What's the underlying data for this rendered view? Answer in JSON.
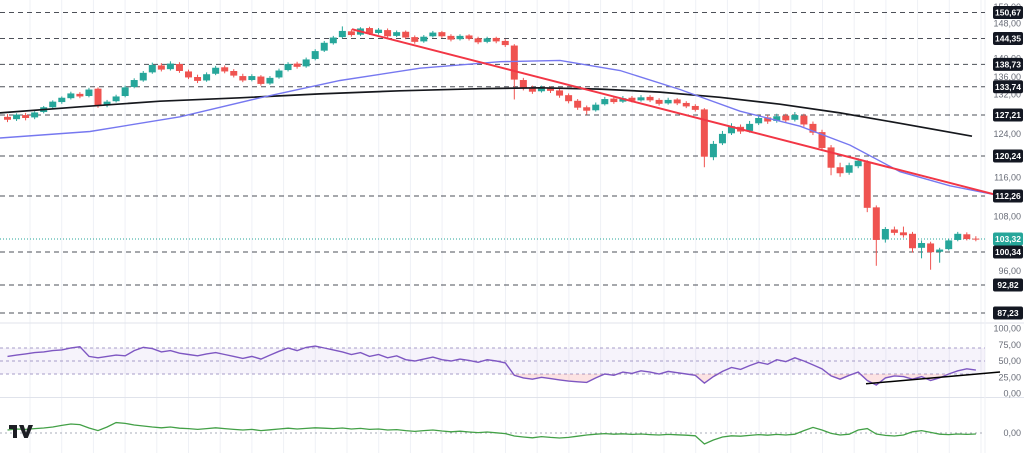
{
  "logo": {
    "name": "TradingView"
  },
  "chart_data": {
    "type": "candlestick",
    "legend_position": "none",
    "grid": "vertical-light",
    "decimal_separator": ",",
    "colors": {
      "background": "#ffffff",
      "grid": "#eff1f6",
      "separator": "#e0e3eb",
      "up": "#26a69a",
      "down": "#ef5350",
      "ma_black": "#16181d",
      "ma_blue": "#7678f0",
      "trendline_red": "#f23645",
      "level_line": "#2e323c",
      "current_price": "#26a69a",
      "badge_bg": "#131722",
      "badge_text": "#ffffff",
      "axis_text": "#696d78",
      "rsi_line": "#7e57c2",
      "rsi_band": "#7e57c2",
      "rsi_band_line": "#a79cc9",
      "rsi_oversold_fill": "#ef5350",
      "rsi_trendline": "#000000",
      "momentum_line": "#43a047",
      "zero_line": "#a8adb8"
    },
    "price_pane": {
      "ticks": [
        {
          "label": "152,00",
          "value": 152
        },
        {
          "label": "148,00",
          "value": 148
        },
        {
          "label": "140,00",
          "value": 140
        },
        {
          "label": "136,00",
          "value": 136
        },
        {
          "label": "132,00",
          "value": 132
        },
        {
          "label": "124,00",
          "value": 124
        },
        {
          "label": "116,00",
          "value": 116
        },
        {
          "label": "108,00",
          "value": 108
        },
        {
          "label": "96,00",
          "value": 96
        }
      ],
      "levels": [
        {
          "label": "150,67",
          "value": 150.67
        },
        {
          "label": "144,35",
          "value": 144.35
        },
        {
          "label": "138,73",
          "value": 138.73
        },
        {
          "label": "133,74",
          "value": 133.74
        },
        {
          "label": "127,21",
          "value": 127.21
        },
        {
          "label": "120,24",
          "value": 120.24
        },
        {
          "label": "112,26",
          "value": 112.26
        },
        {
          "label": "100,34",
          "value": 100.34
        },
        {
          "label": "92,82",
          "value": 92.82
        },
        {
          "label": "87,23",
          "value": 87.23
        }
      ],
      "current_price": {
        "label": "103,32",
        "value": 103.32
      },
      "candles": [
        [
          126.9,
          127.4,
          126.0,
          126.4
        ],
        [
          126.5,
          127.6,
          126.2,
          127.3
        ],
        [
          127.2,
          127.7,
          126.3,
          126.7
        ],
        [
          126.8,
          128.1,
          126.5,
          127.8
        ],
        [
          127.9,
          129.3,
          127.6,
          129.0
        ],
        [
          129.0,
          130.6,
          128.7,
          130.3
        ],
        [
          130.2,
          131.5,
          129.8,
          131.2
        ],
        [
          131.1,
          132.6,
          130.8,
          132.2
        ],
        [
          132.1,
          132.5,
          131.1,
          131.5
        ],
        [
          131.6,
          133.5,
          131.3,
          133.1
        ],
        [
          133.3,
          133.6,
          128.9,
          129.4
        ],
        [
          129.5,
          130.7,
          129.0,
          130.3
        ],
        [
          130.4,
          131.9,
          130.1,
          131.5
        ],
        [
          131.6,
          134.0,
          131.3,
          133.6
        ],
        [
          133.7,
          135.7,
          133.4,
          135.3
        ],
        [
          135.2,
          137.3,
          134.9,
          136.9
        ],
        [
          137.0,
          139.1,
          136.7,
          138.6
        ],
        [
          138.5,
          139.0,
          137.2,
          137.6
        ],
        [
          137.7,
          139.4,
          137.4,
          138.9
        ],
        [
          138.8,
          139.2,
          136.9,
          137.3
        ],
        [
          137.2,
          137.6,
          135.5,
          135.9
        ],
        [
          136.0,
          136.5,
          134.6,
          135.1
        ],
        [
          135.2,
          137.0,
          134.9,
          136.6
        ],
        [
          136.7,
          138.4,
          136.4,
          138.0
        ],
        [
          138.1,
          138.5,
          136.8,
          137.2
        ],
        [
          137.3,
          137.7,
          135.9,
          136.3
        ],
        [
          136.2,
          136.7,
          134.8,
          135.2
        ],
        [
          135.3,
          136.6,
          135.0,
          136.2
        ],
        [
          136.1,
          136.4,
          134.0,
          134.4
        ],
        [
          134.5,
          136.2,
          134.2,
          135.8
        ],
        [
          135.9,
          137.8,
          135.6,
          137.4
        ],
        [
          137.5,
          139.2,
          137.2,
          138.8
        ],
        [
          138.9,
          139.3,
          137.8,
          138.2
        ],
        [
          138.3,
          140.2,
          138.0,
          139.8
        ],
        [
          139.9,
          142.0,
          139.6,
          141.6
        ],
        [
          141.7,
          143.8,
          141.4,
          143.4
        ],
        [
          143.3,
          145.0,
          143.0,
          144.6
        ],
        [
          144.7,
          147.3,
          144.4,
          146.2
        ],
        [
          146.1,
          146.6,
          144.8,
          145.2
        ],
        [
          145.3,
          147.1,
          145.0,
          146.8
        ],
        [
          146.9,
          147.2,
          145.2,
          145.6
        ],
        [
          145.7,
          146.9,
          145.3,
          146.5
        ],
        [
          146.4,
          146.8,
          144.5,
          144.9
        ],
        [
          145.0,
          146.3,
          144.7,
          145.9
        ],
        [
          146.0,
          146.3,
          144.2,
          144.6
        ],
        [
          144.7,
          145.1,
          143.2,
          143.6
        ],
        [
          143.7,
          145.2,
          143.4,
          144.8
        ],
        [
          144.9,
          146.2,
          144.6,
          145.8
        ],
        [
          145.9,
          146.2,
          144.5,
          144.9
        ],
        [
          145.0,
          145.4,
          143.7,
          144.1
        ],
        [
          144.2,
          145.4,
          143.9,
          145.0
        ],
        [
          145.1,
          145.4,
          143.9,
          144.3
        ],
        [
          144.4,
          144.8,
          143.1,
          143.5
        ],
        [
          143.6,
          144.8,
          143.3,
          144.4
        ],
        [
          144.5,
          144.8,
          143.3,
          143.7
        ],
        [
          143.8,
          144.2,
          142.5,
          142.9
        ],
        [
          142.8,
          143.1,
          130.8,
          135.4
        ],
        [
          135.3,
          135.8,
          132.9,
          133.4
        ],
        [
          133.5,
          134.0,
          132.1,
          132.6
        ],
        [
          132.7,
          134.0,
          132.4,
          133.5
        ],
        [
          133.4,
          133.8,
          132.3,
          132.8
        ],
        [
          132.9,
          133.3,
          131.2,
          131.7
        ],
        [
          131.8,
          132.2,
          129.9,
          130.4
        ],
        [
          130.5,
          130.9,
          128.4,
          128.9
        ],
        [
          129.0,
          129.4,
          127.3,
          128.2
        ],
        [
          128.3,
          130.1,
          128.0,
          129.6
        ],
        [
          129.7,
          131.4,
          129.4,
          130.9
        ],
        [
          131.0,
          131.4,
          129.8,
          130.2
        ],
        [
          130.3,
          131.6,
          130.0,
          131.1
        ],
        [
          131.2,
          131.6,
          130.1,
          130.5
        ],
        [
          130.6,
          131.8,
          130.3,
          131.3
        ],
        [
          131.4,
          131.8,
          130.2,
          130.6
        ],
        [
          130.7,
          131.1,
          129.4,
          129.8
        ],
        [
          129.9,
          131.2,
          129.6,
          130.7
        ],
        [
          130.8,
          131.1,
          129.5,
          129.9
        ],
        [
          130.0,
          130.4,
          128.8,
          129.2
        ],
        [
          129.3,
          129.7,
          128.0,
          128.4
        ],
        [
          128.5,
          128.8,
          118.0,
          120.1
        ],
        [
          120.0,
          122.8,
          119.4,
          122.3
        ],
        [
          122.4,
          124.5,
          122.1,
          124.0
        ],
        [
          124.1,
          125.8,
          123.8,
          125.3
        ],
        [
          125.2,
          125.6,
          124.0,
          124.4
        ],
        [
          124.5,
          126.2,
          124.2,
          125.7
        ],
        [
          125.8,
          127.2,
          125.5,
          126.7
        ],
        [
          126.8,
          127.2,
          125.7,
          126.1
        ],
        [
          126.2,
          127.5,
          125.9,
          127.0
        ],
        [
          127.1,
          127.5,
          125.9,
          126.3
        ],
        [
          126.4,
          127.9,
          126.1,
          127.2
        ],
        [
          127.1,
          127.5,
          125.2,
          125.6
        ],
        [
          125.7,
          126.1,
          123.8,
          124.2
        ],
        [
          124.3,
          124.7,
          121.1,
          121.6
        ],
        [
          121.7,
          122.1,
          116.4,
          117.9
        ],
        [
          118.0,
          118.9,
          116.1,
          116.8
        ],
        [
          116.9,
          118.9,
          116.5,
          118.4
        ],
        [
          118.2,
          119.8,
          117.8,
          119.3
        ],
        [
          119.0,
          119.4,
          108.9,
          109.8
        ],
        [
          109.9,
          110.3,
          97.2,
          103.1
        ],
        [
          103.2,
          105.8,
          102.5,
          105.4
        ],
        [
          105.3,
          105.9,
          104.1,
          104.6
        ],
        [
          104.7,
          105.9,
          103.6,
          104.1
        ],
        [
          104.4,
          104.8,
          100.2,
          101.2
        ],
        [
          101.3,
          103.0,
          98.9,
          102.4
        ],
        [
          102.3,
          102.7,
          96.3,
          100.3
        ],
        [
          100.4,
          101.3,
          97.9,
          100.9
        ],
        [
          101.0,
          103.4,
          100.7,
          103.0
        ],
        [
          103.1,
          104.8,
          102.8,
          104.4
        ],
        [
          104.3,
          104.7,
          103.0,
          103.3
        ],
        [
          103.4,
          103.9,
          102.8,
          103.32
        ]
      ],
      "ma_black": [
        [
          0,
          127.7
        ],
        [
          80,
          129.1
        ],
        [
          160,
          130.4
        ],
        [
          240,
          131.2
        ],
        [
          320,
          132.1
        ],
        [
          400,
          132.8
        ],
        [
          480,
          133.3
        ],
        [
          540,
          133.5
        ],
        [
          600,
          133.2
        ],
        [
          660,
          132.5
        ],
        [
          720,
          131.3
        ],
        [
          780,
          129.7
        ],
        [
          840,
          127.7
        ],
        [
          900,
          125.8
        ],
        [
          972,
          123.6
        ]
      ],
      "ma_blue": [
        [
          0,
          123.3
        ],
        [
          90,
          124.4
        ],
        [
          180,
          126.9
        ],
        [
          260,
          131.2
        ],
        [
          340,
          135.2
        ],
        [
          420,
          137.9
        ],
        [
          500,
          139.3
        ],
        [
          560,
          139.6
        ],
        [
          620,
          137.4
        ],
        [
          680,
          133.1
        ],
        [
          740,
          128.1
        ],
        [
          800,
          125.3
        ],
        [
          850,
          122.1
        ],
        [
          900,
          117.1
        ],
        [
          950,
          114.3
        ],
        [
          998,
          112.4
        ]
      ],
      "trendline_red": {
        "from": [
          352,
          146.6
        ],
        "to": [
          1000,
          112.3
        ]
      }
    },
    "rsi_pane": {
      "ticks": [
        {
          "label": "100,00",
          "value": 100
        },
        {
          "label": "75,00",
          "value": 75
        },
        {
          "label": "50,00",
          "value": 50
        },
        {
          "label": "25,00",
          "value": 25
        },
        {
          "label": "0,00",
          "value": 0
        }
      ],
      "band_upper": 70,
      "band_mid": 50,
      "band_lower": 30,
      "values": [
        57,
        59,
        61,
        63,
        64,
        66,
        67,
        70,
        72,
        57,
        55,
        57,
        59,
        58,
        66,
        71,
        69,
        64,
        66,
        62,
        60,
        58,
        61,
        63,
        60,
        57,
        54,
        57,
        53,
        59,
        65,
        70,
        66,
        71,
        73,
        70,
        67,
        64,
        60,
        63,
        57,
        60,
        55,
        58,
        52,
        50,
        53,
        56,
        52,
        50,
        53,
        51,
        48,
        52,
        50,
        47,
        28,
        24,
        22,
        25,
        23,
        21,
        19,
        18,
        17,
        24,
        30,
        28,
        33,
        31,
        35,
        33,
        30,
        34,
        32,
        30,
        28,
        16,
        26,
        34,
        40,
        37,
        43,
        48,
        45,
        52,
        49,
        55,
        50,
        44,
        38,
        27,
        22,
        28,
        33,
        20,
        13,
        24,
        27,
        26,
        22,
        26,
        20,
        24,
        30,
        35,
        38,
        36
      ],
      "trendline_black": {
        "from": [
          866,
          15
        ],
        "to": [
          1000,
          33
        ]
      }
    },
    "momentum_pane": {
      "ticks": [
        {
          "label": "0,00",
          "value": 0
        }
      ],
      "values": [
        1.5,
        2,
        1.8,
        2.2,
        2.5,
        3,
        3.8,
        4.5,
        4.2,
        2.5,
        1.2,
        3,
        5.2,
        4.8,
        4,
        3.5,
        3,
        2.6,
        3,
        2.4,
        2.2,
        1.8,
        2.2,
        2.6,
        2.2,
        1.8,
        1.5,
        1.8,
        1.2,
        1.6,
        2,
        2.4,
        2,
        2.3,
        2.6,
        2.4,
        2.2,
        2.5,
        2,
        2.3,
        1.8,
        2,
        1.5,
        1.7,
        1.2,
        0.8,
        1.2,
        1.5,
        1,
        0.6,
        0.9,
        0.5,
        0.2,
        0.5,
        0.1,
        -0.3,
        -1.5,
        -2,
        -2.4,
        -1.8,
        -2.2,
        -2.5,
        -2.2,
        -1.6,
        -1,
        -0.6,
        -0.3,
        -0.6,
        -0.4,
        -0.7,
        -0.5,
        -0.8,
        -1,
        -0.7,
        -0.9,
        -1.1,
        -1.4,
        -5.5,
        -3.5,
        -2,
        -1.4,
        -1.6,
        -1.2,
        -0.8,
        -1.1,
        -0.7,
        -1,
        -0.6,
        1.2,
        2.8,
        1.5,
        -0.2,
        -1,
        -0.6,
        1.5,
        2.2,
        -0.5,
        -1.2,
        -1.5,
        -1,
        0.6,
        1.2,
        0.3,
        -0.6,
        -0.8,
        -0.5,
        -0.7,
        -0.5
      ]
    }
  }
}
